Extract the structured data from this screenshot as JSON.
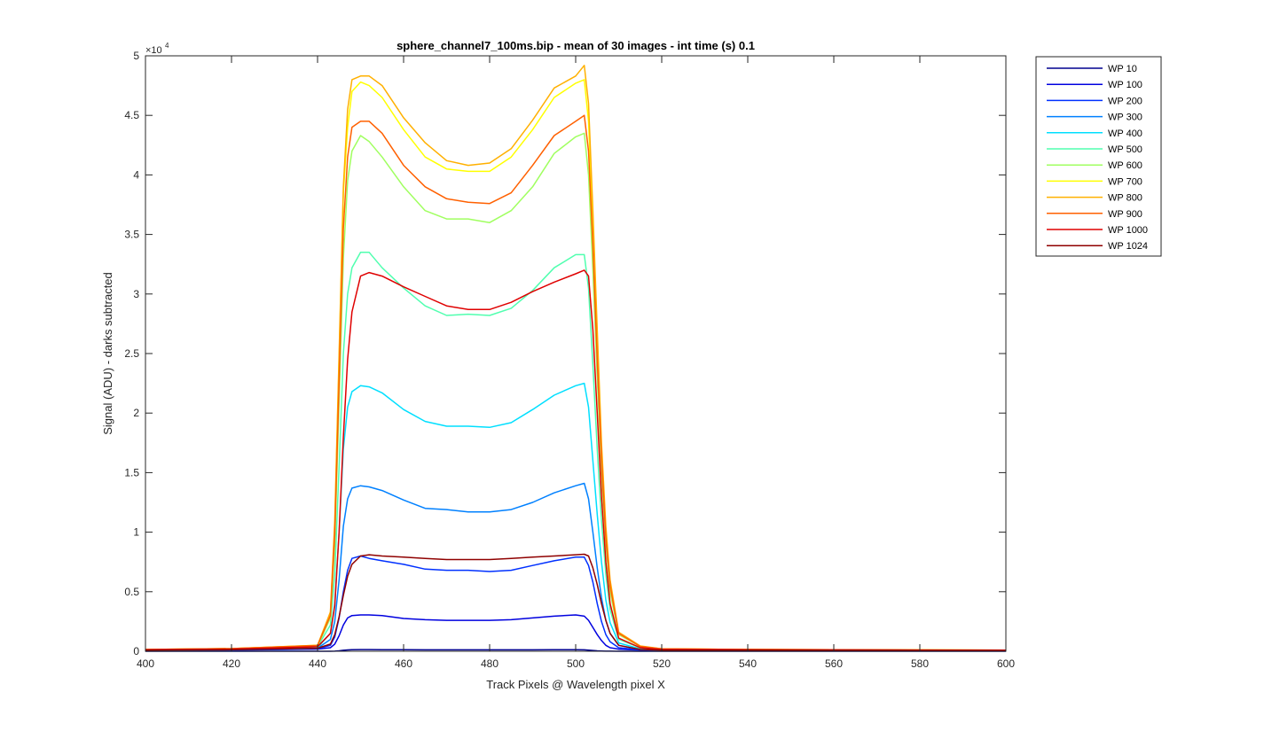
{
  "chart_data": {
    "type": "line",
    "title": "sphere_channel7_100ms.bip - mean of 30 images - int time (s) 0.1",
    "xlabel": "Track Pixels @ Wavelength pixel X",
    "ylabel": "Signal (ADU) - darks subtracted",
    "xlim": [
      400,
      600
    ],
    "ylim": [
      0,
      50000
    ],
    "y_exponent_label": "×10",
    "y_exponent_power": "4",
    "xticks": [
      400,
      420,
      440,
      460,
      480,
      500,
      520,
      540,
      560,
      580,
      600
    ],
    "xtick_labels": [
      "400",
      "420",
      "440",
      "460",
      "480",
      "500",
      "520",
      "540",
      "560",
      "580",
      "600"
    ],
    "yticks": [
      0,
      5000,
      10000,
      15000,
      20000,
      25000,
      30000,
      35000,
      40000,
      45000,
      50000
    ],
    "ytick_labels": [
      "0",
      "0.5",
      "1",
      "1.5",
      "2",
      "2.5",
      "3",
      "3.5",
      "4",
      "4.5",
      "5"
    ],
    "grid": false,
    "legend_position": "outside-top-right",
    "x": [
      400,
      420,
      440,
      443,
      444,
      445,
      446,
      447,
      448,
      450,
      452,
      455,
      460,
      465,
      470,
      475,
      480,
      485,
      490,
      495,
      500,
      502,
      503,
      504,
      505,
      506,
      507,
      508,
      510,
      515,
      520,
      540,
      560,
      580,
      600
    ],
    "series": [
      {
        "name": "WP 10",
        "color": "#00008f",
        "values": [
          0,
          0,
          0,
          0,
          10,
          40,
          80,
          110,
          130,
          140,
          140,
          130,
          130,
          120,
          120,
          120,
          120,
          120,
          120,
          130,
          130,
          120,
          100,
          70,
          40,
          20,
          10,
          5,
          0,
          0,
          0,
          0,
          0,
          0,
          0
        ]
      },
      {
        "name": "WP 100",
        "color": "#0000df",
        "values": [
          80,
          90,
          180,
          300,
          600,
          1300,
          2200,
          2800,
          3000,
          3050,
          3050,
          3000,
          2750,
          2650,
          2600,
          2600,
          2600,
          2650,
          2800,
          2950,
          3050,
          2950,
          2600,
          2000,
          1400,
          900,
          500,
          300,
          180,
          90,
          80,
          70,
          60,
          50,
          40
        ]
      },
      {
        "name": "WP 200",
        "color": "#0030ff",
        "values": [
          80,
          100,
          200,
          500,
          1200,
          2800,
          5000,
          6800,
          7800,
          8000,
          7800,
          7600,
          7300,
          6900,
          6800,
          6800,
          6700,
          6800,
          7200,
          7600,
          7900,
          7900,
          7200,
          5800,
          4000,
          2500,
          1400,
          800,
          300,
          120,
          90,
          80,
          70,
          60,
          50
        ]
      },
      {
        "name": "WP 300",
        "color": "#0080ff",
        "values": [
          90,
          120,
          250,
          1000,
          2500,
          6000,
          10500,
          12800,
          13700,
          13900,
          13800,
          13500,
          12700,
          12000,
          11900,
          11700,
          11700,
          11900,
          12500,
          13300,
          13900,
          14100,
          12800,
          10000,
          7000,
          4500,
          2600,
          1500,
          500,
          150,
          100,
          90,
          80,
          70,
          60
        ]
      },
      {
        "name": "WP 400",
        "color": "#00dfff",
        "values": [
          100,
          150,
          300,
          1500,
          4000,
          10000,
          17000,
          20500,
          21800,
          22300,
          22200,
          21700,
          20300,
          19300,
          18900,
          18900,
          18800,
          19200,
          20300,
          21500,
          22300,
          22500,
          20500,
          16000,
          11500,
          7500,
          4300,
          2400,
          700,
          200,
          120,
          100,
          90,
          80,
          70
        ]
      },
      {
        "name": "WP 500",
        "color": "#50ffaf",
        "values": [
          120,
          180,
          400,
          2200,
          6500,
          15500,
          25000,
          30000,
          32200,
          33500,
          33500,
          32200,
          30500,
          29000,
          28200,
          28300,
          28200,
          28800,
          30300,
          32200,
          33300,
          33300,
          30500,
          24000,
          17000,
          11000,
          6500,
          3500,
          1000,
          300,
          150,
          120,
          100,
          90,
          80
        ]
      },
      {
        "name": "WP 600",
        "color": "#a0ff60",
        "values": [
          140,
          200,
          450,
          2800,
          9000,
          21000,
          33000,
          39500,
          42000,
          43300,
          42800,
          41500,
          39000,
          37000,
          36300,
          36300,
          36000,
          37000,
          39000,
          41800,
          43200,
          43500,
          40000,
          32000,
          23000,
          15000,
          9000,
          5000,
          1400,
          400,
          180,
          140,
          120,
          100,
          90
        ]
      },
      {
        "name": "WP 700",
        "color": "#ffff00",
        "values": [
          150,
          220,
          500,
          3200,
          10500,
          24500,
          38500,
          44000,
          47000,
          47800,
          47500,
          46500,
          43800,
          41500,
          40500,
          40300,
          40300,
          41500,
          43800,
          46500,
          47700,
          48000,
          44500,
          35500,
          25500,
          16500,
          10000,
          5500,
          1500,
          400,
          200,
          150,
          130,
          110,
          100
        ]
      },
      {
        "name": "WP 800",
        "color": "#ffb000",
        "values": [
          150,
          220,
          500,
          3300,
          11000,
          25000,
          39000,
          45500,
          48000,
          48300,
          48300,
          47500,
          44800,
          42700,
          41200,
          40800,
          41000,
          42200,
          44600,
          47300,
          48300,
          49200,
          46000,
          37000,
          27000,
          17500,
          10500,
          6000,
          1600,
          450,
          200,
          150,
          130,
          110,
          100
        ]
      },
      {
        "name": "WP 900",
        "color": "#ff6000",
        "values": [
          150,
          220,
          480,
          3000,
          9800,
          22500,
          35500,
          41500,
          44000,
          44500,
          44500,
          43500,
          40800,
          39000,
          38000,
          37700,
          37600,
          38500,
          40800,
          43300,
          44500,
          45000,
          42000,
          34000,
          24500,
          16000,
          9500,
          5500,
          1500,
          400,
          200,
          150,
          130,
          110,
          100
        ]
      },
      {
        "name": "WP 1000",
        "color": "#df0000",
        "values": [
          130,
          180,
          380,
          1500,
          3800,
          10000,
          18000,
          24500,
          28500,
          31500,
          31800,
          31500,
          30600,
          29800,
          29000,
          28700,
          28700,
          29300,
          30200,
          31000,
          31700,
          32000,
          31500,
          27000,
          20000,
          13000,
          7500,
          4000,
          1100,
          300,
          150,
          130,
          110,
          100,
          90
        ]
      },
      {
        "name": "WP 1024",
        "color": "#8f0000",
        "values": [
          100,
          130,
          250,
          600,
          1400,
          2900,
          4700,
          6300,
          7300,
          8000,
          8100,
          8000,
          7900,
          7800,
          7700,
          7700,
          7700,
          7800,
          7900,
          8000,
          8100,
          8150,
          8000,
          7000,
          5600,
          4000,
          2600,
          1500,
          500,
          150,
          100,
          90,
          80,
          70,
          60
        ]
      }
    ]
  }
}
